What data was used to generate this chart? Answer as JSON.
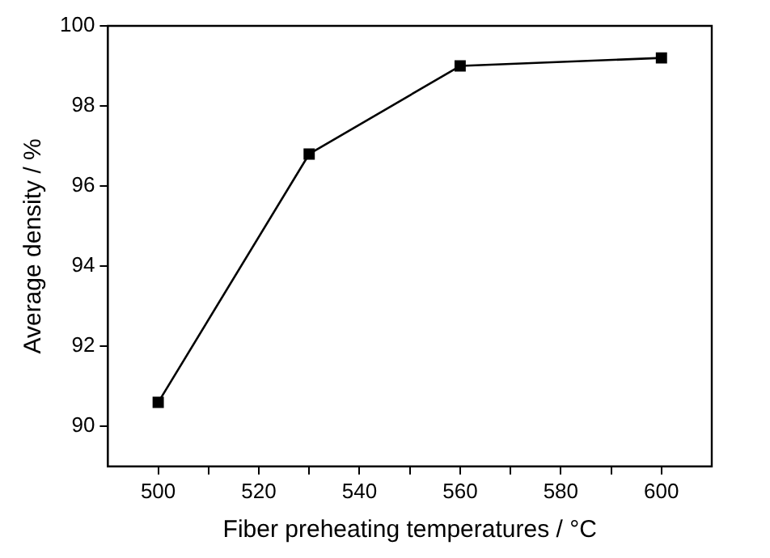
{
  "chart_data": {
    "type": "line",
    "xlabel": "Fiber preheating temperatures / °C",
    "ylabel": "Average density / %",
    "x": [
      500,
      530,
      560,
      600
    ],
    "series": [
      {
        "color": "#000000",
        "values": [
          90.6,
          96.8,
          99.0,
          99.2
        ]
      }
    ],
    "xlim": [
      490,
      610
    ],
    "xticks": [
      500,
      {
        "value": 510,
        "label": null
      },
      520,
      {
        "value": 530,
        "label": null
      },
      540,
      {
        "value": 550,
        "label": null
      },
      560,
      {
        "value": 570,
        "label": null
      },
      580,
      {
        "value": 590,
        "label": null
      },
      600
    ],
    "ylim": [
      89,
      100
    ],
    "yticks": [
      90,
      92,
      94,
      96,
      98,
      100
    ],
    "grid": false,
    "legend": false,
    "marker": "square",
    "line_style": "solid"
  }
}
